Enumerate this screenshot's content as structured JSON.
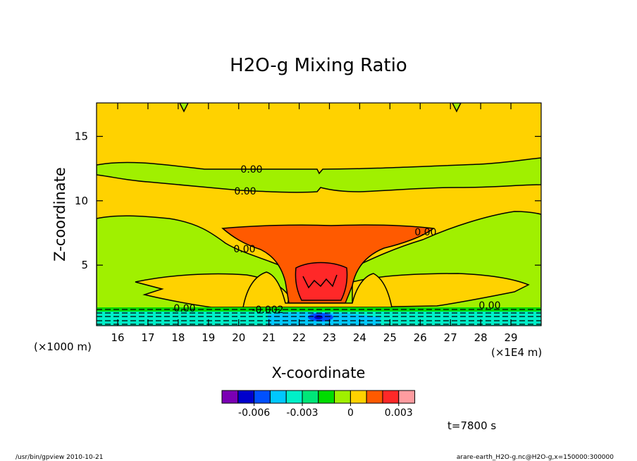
{
  "chart_data": {
    "type": "contour",
    "title": "H2O-g Mixing Ratio",
    "xlabel": "X-coordinate",
    "ylabel": "Z-coordinate",
    "x_unit": "(×1E4 m)",
    "y_unit": "(×1000 m)",
    "xlim": [
      15.3,
      30.0
    ],
    "ylim": [
      0.3,
      17.6
    ],
    "x_ticks": [
      16,
      17,
      18,
      19,
      20,
      21,
      22,
      23,
      24,
      25,
      26,
      27,
      28,
      29
    ],
    "y_ticks": [
      5,
      10,
      15
    ],
    "contour_labels": [
      "0.00",
      "0.00",
      "0.00",
      "0.00",
      "0.00",
      "0.00",
      "-0.002"
    ],
    "colorbar": {
      "colors": [
        "#7b00b4",
        "#0000cc",
        "#0050ff",
        "#00c8ff",
        "#00f0c8",
        "#00e678",
        "#00dc00",
        "#a0f000",
        "#ffd200",
        "#ff5a00",
        "#ff2828",
        "#ff9ca0"
      ],
      "tick_labels": [
        "-0.006",
        "-0.003",
        "0",
        "0.003"
      ]
    },
    "time_label": "t=7800 s"
  },
  "footer": {
    "left": "/usr/bin/gpview   2010-10-21",
    "right": "arare-earth_H2O-g.nc@H2O-g,x=150000:300000"
  }
}
